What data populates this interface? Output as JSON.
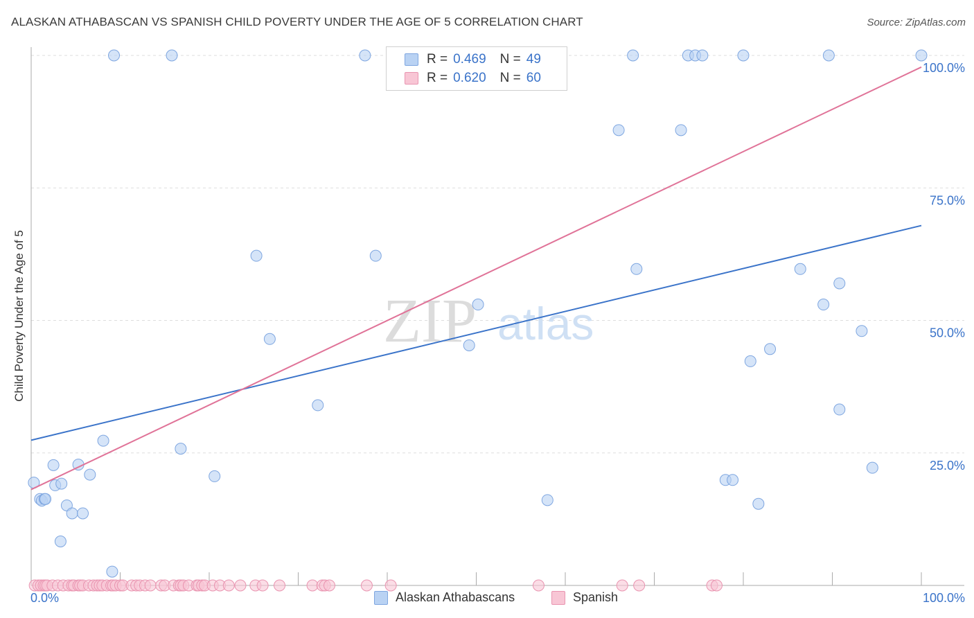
{
  "title": "ALASKAN ATHABASCAN VS SPANISH CHILD POVERTY UNDER THE AGE OF 5 CORRELATION CHART",
  "source": "Source: ZipAtlas.com",
  "watermark": {
    "zip": "ZIP",
    "atlas": "atlas"
  },
  "legend": {
    "r_label": "R =",
    "n_label": "N =",
    "rows": [
      {
        "r": "0.469",
        "n": "49",
        "fill": "#b9d2f3",
        "stroke": "#7ea6e0"
      },
      {
        "r": "0.620",
        "n": "60",
        "fill": "#f8c6d5",
        "stroke": "#e994b0"
      }
    ]
  },
  "bottom_legend": [
    "Alaskan Athabascans",
    "Spanish"
  ],
  "chart_data": {
    "type": "scatter",
    "title": "ALASKAN ATHABASCAN VS SPANISH CHILD POVERTY UNDER THE AGE OF 5 CORRELATION CHART",
    "xlabel": "",
    "ylabel": "Child Poverty Under the Age of 5",
    "xlim": [
      0,
      100
    ],
    "ylim": [
      0,
      100
    ],
    "x_tick_labels": [
      "0.0%",
      "100.0%"
    ],
    "y_tick_labels": [
      "25.0%",
      "50.0%",
      "75.0%",
      "100.0%"
    ],
    "y_ticks": [
      25,
      50,
      75,
      100
    ],
    "grid": "dashed horizontal",
    "legend_position": "top-center",
    "series": [
      {
        "name": "Alaskan Athabascans",
        "color": "#3a73c9",
        "point_fill": "#b9d2f3",
        "point_stroke": "#7ea6e0",
        "trend": {
          "x": [
            0,
            100
          ],
          "y": [
            27.4,
            67.9
          ]
        },
        "x": [
          0.3,
          1.0,
          1.2,
          1.5,
          1.6,
          2.5,
          2.7,
          3.3,
          3.4,
          4.0,
          4.6,
          5.3,
          5.8,
          6.6,
          8.1,
          9.1,
          9.3,
          15.8,
          16.8,
          20.6,
          25.3,
          26.8,
          32.2,
          37.5,
          38.7,
          49.2,
          50.2,
          58.0,
          66.0,
          67.6,
          68.0,
          73.0,
          73.8,
          74.6,
          75.4,
          78.0,
          78.8,
          80.0,
          80.8,
          81.7,
          83.0,
          86.4,
          89.0,
          89.6,
          90.8,
          90.8,
          93.3,
          94.5,
          100.0
        ],
        "y": [
          19.4,
          16.3,
          16.0,
          16.3,
          16.3,
          22.7,
          18.9,
          8.3,
          19.2,
          15.1,
          13.6,
          22.8,
          13.6,
          20.9,
          27.3,
          2.6,
          100.0,
          100.0,
          25.8,
          20.6,
          62.2,
          46.5,
          34.0,
          100.0,
          62.2,
          45.3,
          53.0,
          16.1,
          85.9,
          100.0,
          59.7,
          85.9,
          100.0,
          100.0,
          100.0,
          19.9,
          19.9,
          100.0,
          42.3,
          15.4,
          44.6,
          59.7,
          53.0,
          100.0,
          57.0,
          33.2,
          48.0,
          22.2,
          100.0
        ]
      },
      {
        "name": "Spanish",
        "color": "#e07398",
        "point_fill": "#f8c6d5",
        "point_stroke": "#e994b0",
        "trend": {
          "x": [
            0,
            100
          ],
          "y": [
            18.1,
            97.8
          ]
        },
        "x": [
          0.4,
          0.8,
          1.1,
          1.4,
          1.6,
          1.8,
          2.4,
          3.0,
          3.6,
          4.2,
          4.6,
          4.8,
          5.3,
          5.5,
          5.8,
          6.5,
          7.0,
          7.4,
          7.7,
          8.0,
          8.5,
          9.0,
          9.2,
          9.5,
          10.0,
          10.3,
          11.3,
          11.8,
          12.2,
          12.8,
          13.4,
          14.6,
          15.0,
          16.0,
          16.6,
          16.8,
          17.1,
          17.7,
          18.6,
          18.8,
          19.2,
          19.5,
          20.4,
          21.2,
          22.2,
          23.5,
          25.2,
          26.0,
          27.9,
          31.6,
          32.7,
          33.0,
          33.5,
          37.7,
          40.4,
          57.0,
          66.4,
          68.3,
          76.5,
          77.0
        ]
      }
    ]
  }
}
